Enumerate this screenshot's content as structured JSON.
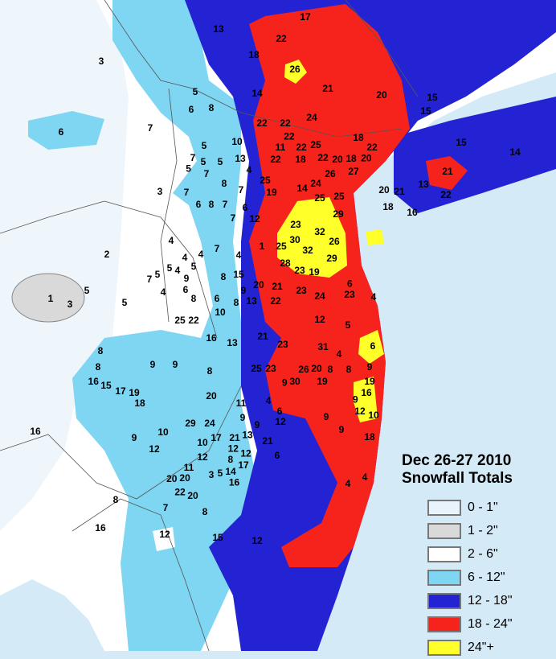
{
  "legend": {
    "title_line1": "Dec 26-27 2010",
    "title_line2": "Snowfall Totals",
    "items": [
      {
        "label": "0 - 1\"",
        "color": "#e8f3fb"
      },
      {
        "label": "1 - 2\"",
        "color": "#d9d9d9"
      },
      {
        "label": "2 - 6\"",
        "color": "#ffffff"
      },
      {
        "label": "6 - 12\"",
        "color": "#7fd6f2"
      },
      {
        "label": "12 - 18\"",
        "color": "#2323d4"
      },
      {
        "label": "18 - 24\"",
        "color": "#f5231b"
      },
      {
        "label": "24\"+",
        "color": "#ffff2a"
      }
    ]
  },
  "colors": {
    "ocean": "#d5eaf7",
    "county_lines": "#555555"
  },
  "observations": [
    17,
    13,
    22,
    18,
    26,
    21,
    14,
    20,
    24,
    22,
    22,
    18,
    22,
    15,
    15,
    14,
    15,
    3,
    6,
    5,
    6,
    8,
    7,
    5,
    10,
    5,
    13,
    7,
    5,
    4,
    11,
    22,
    25,
    22,
    18,
    22,
    20,
    18,
    20,
    22,
    25,
    19,
    14,
    24,
    26,
    27,
    20,
    21,
    13,
    18,
    16,
    22,
    21,
    3,
    7,
    5,
    7,
    8,
    7,
    6,
    8,
    7,
    6,
    7,
    12,
    25,
    25,
    29,
    23,
    30,
    32,
    32,
    26,
    25,
    29,
    28,
    23,
    19,
    2,
    4,
    5,
    4,
    5,
    4,
    4,
    5,
    7,
    9,
    7,
    4,
    8,
    15,
    1,
    1,
    3,
    5,
    5,
    4,
    6,
    8,
    6,
    9,
    8,
    13,
    20,
    21,
    23,
    22,
    24,
    23,
    6,
    4,
    25,
    22,
    5,
    12,
    10,
    16,
    13,
    21,
    23,
    31,
    4,
    6,
    8,
    8,
    9,
    9,
    8,
    15,
    16,
    17,
    19,
    18,
    20,
    25,
    23,
    20,
    30,
    26,
    8,
    8,
    9,
    9,
    19,
    16,
    19,
    29,
    24,
    11,
    9,
    17,
    21,
    4,
    6,
    9,
    12,
    10,
    9,
    12,
    9,
    9,
    18,
    16,
    12,
    10,
    9,
    10,
    12,
    13,
    8,
    17,
    21,
    6,
    12,
    11,
    3,
    5,
    14,
    12,
    16,
    20,
    20,
    20,
    22,
    4,
    4,
    8,
    7,
    8,
    16,
    12,
    15,
    12
  ]
}
